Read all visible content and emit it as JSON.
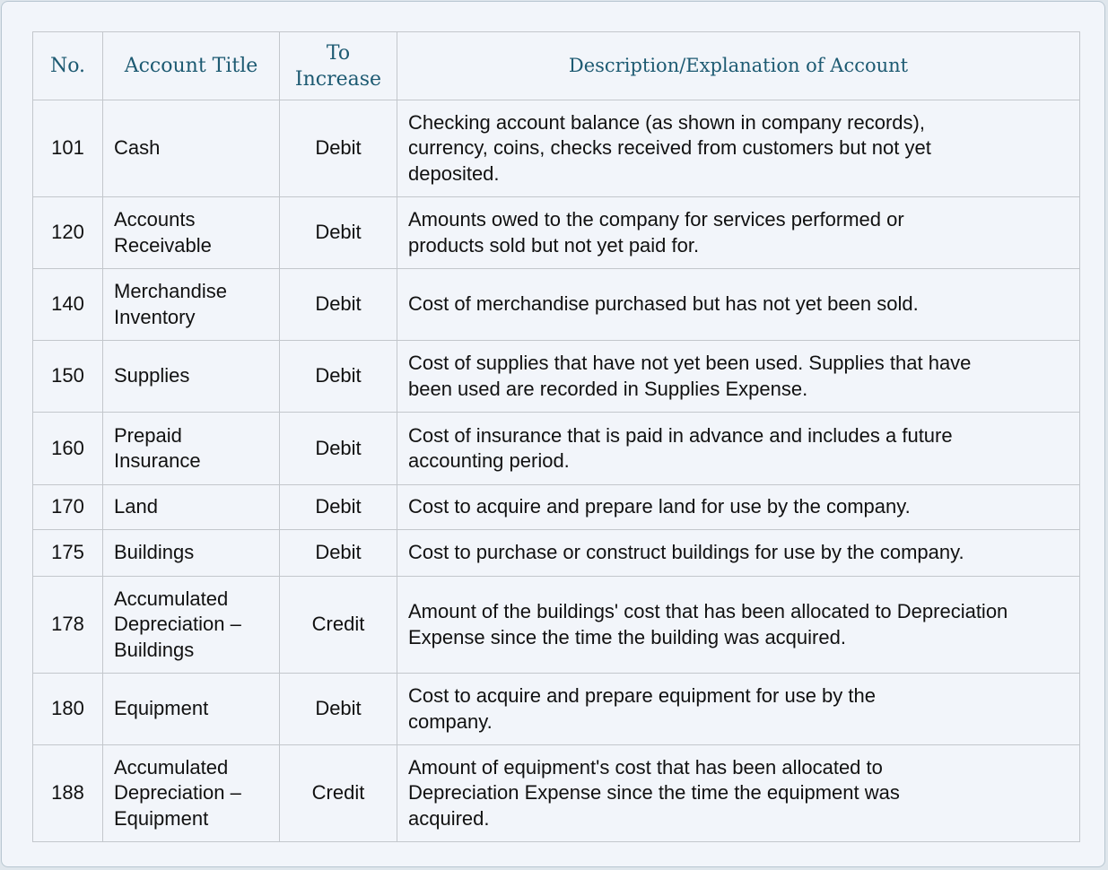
{
  "table": {
    "headers": [
      "No.",
      "Account Title",
      "To Increase",
      "Description/Explanation of Account"
    ],
    "rows": [
      {
        "no": "101",
        "title": "Cash",
        "increase": "Debit",
        "desc": "Checking account balance (as shown in company records), currency, coins, checks received from customers but not yet deposited."
      },
      {
        "no": "120",
        "title": "Accounts Receivable",
        "increase": "Debit",
        "desc": "Amounts owed to the company for services performed or products sold but not yet paid for."
      },
      {
        "no": "140",
        "title": "Merchandise Inventory",
        "increase": "Debit",
        "desc": "Cost of merchandise purchased but has not yet been sold."
      },
      {
        "no": "150",
        "title": "Supplies",
        "increase": "Debit",
        "desc": "Cost of supplies that have not yet been used. Supplies that have been used are recorded in Supplies Expense."
      },
      {
        "no": "160",
        "title": "Prepaid Insurance",
        "increase": "Debit",
        "desc": "Cost of insurance that is paid in advance and includes a future accounting period."
      },
      {
        "no": "170",
        "title": "Land",
        "increase": "Debit",
        "desc": "Cost to acquire and prepare land for use by the company."
      },
      {
        "no": "175",
        "title": "Buildings",
        "increase": "Debit",
        "desc": "Cost to purchase or construct buildings for use by the company."
      },
      {
        "no": "178",
        "title": "Accumulated Depreciation – Buildings",
        "increase": "Credit",
        "desc": "Amount of the buildings' cost that has been allocated to Depreciation Expense since the time the building was acquired."
      },
      {
        "no": "180",
        "title": "Equipment",
        "increase": "Debit",
        "desc": "Cost to acquire and prepare equipment for use by the company."
      },
      {
        "no": "188",
        "title": "Accumulated Depreciation – Equipment",
        "increase": "Credit",
        "desc": "Amount of equipment's cost that has been allocated to Depreciation Expense since the time the equipment was acquired."
      }
    ]
  }
}
